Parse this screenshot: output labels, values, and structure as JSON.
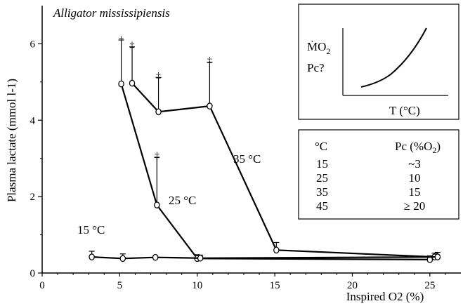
{
  "chart_data": {
    "type": "line",
    "title": "Alligator mississipiensis",
    "xlabel": "Inspired O2 (%)",
    "ylabel": "Plasma lactate (mmol l-1)",
    "xlim": [
      0,
      27
    ],
    "ylim": [
      0,
      7
    ],
    "x_ticks": [
      "0",
      "5",
      "10",
      "15",
      "20",
      "25"
    ],
    "y_ticks": [
      "0",
      "2",
      "4",
      "6"
    ],
    "grid": false,
    "series": [
      {
        "name": "35 °C",
        "points": [
          {
            "x": 5.8,
            "y": 4.97,
            "err": 0.95,
            "mark": "‡"
          },
          {
            "x": 7.5,
            "y": 4.22,
            "err": 0.9,
            "mark": "‡"
          },
          {
            "x": 10.8,
            "y": 4.37,
            "err": 1.15,
            "mark": "‡"
          },
          {
            "x": 15.1,
            "y": 0.6,
            "err": 0.2,
            "mark": ""
          },
          {
            "x": 25.3,
            "y": 0.42,
            "err": 0.1,
            "mark": ""
          }
        ]
      },
      {
        "name": "25 °C",
        "points": [
          {
            "x": 5.1,
            "y": 4.95,
            "err": 1.15,
            "mark": "+"
          },
          {
            "x": 7.4,
            "y": 1.78,
            "err": 1.25,
            "mark": "‡"
          },
          {
            "x": 10.0,
            "y": 0.38,
            "err": 0.1,
            "mark": ""
          },
          {
            "x": 25.0,
            "y": 0.35,
            "err": 0.1,
            "mark": ""
          }
        ]
      },
      {
        "name": "15 °C",
        "points": [
          {
            "x": 3.2,
            "y": 0.42,
            "err": 0.15,
            "mark": ""
          },
          {
            "x": 5.2,
            "y": 0.38,
            "err": 0.12,
            "mark": ""
          },
          {
            "x": 7.3,
            "y": 0.41,
            "err": 0.0,
            "mark": ""
          },
          {
            "x": 10.2,
            "y": 0.39,
            "err": 0.08,
            "mark": ""
          },
          {
            "x": 25.5,
            "y": 0.42,
            "err": 0.12,
            "mark": ""
          }
        ]
      }
    ],
    "inset": {
      "y_label_top": "Ṁ",
      "y_label_top_sub": "O",
      "y_label_top_sub2": "2",
      "y_label_bottom": "Pc?",
      "x_label": "T (°C)"
    },
    "table": {
      "headers": [
        "°C",
        "Pc (%O2)"
      ],
      "rows": [
        [
          "15",
          "~3"
        ],
        [
          "25",
          "10"
        ],
        [
          "35",
          "15"
        ],
        [
          "45",
          "≥ 20"
        ]
      ]
    }
  }
}
